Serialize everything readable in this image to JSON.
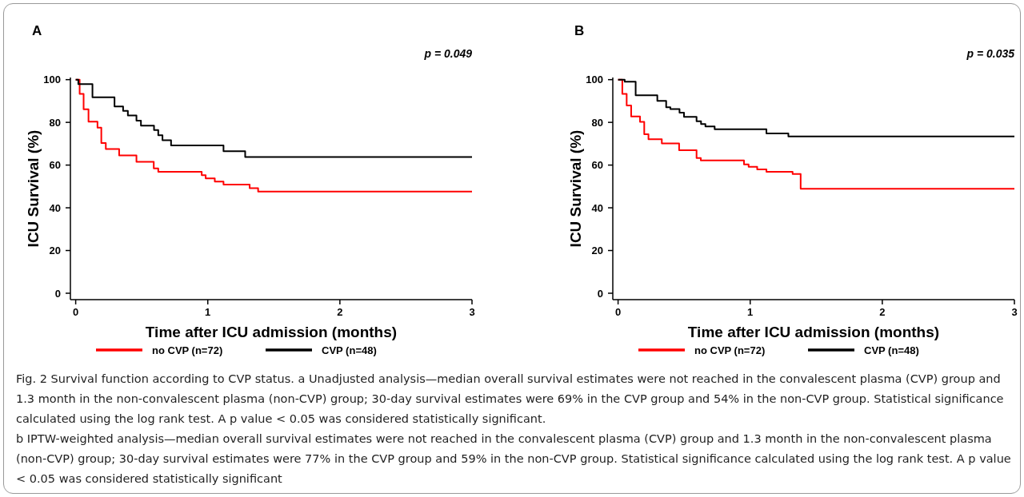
{
  "chart_data": [
    {
      "type": "step",
      "title": "A",
      "xlabel": "Time after ICU admission (months)",
      "ylabel": "ICU Survival (%)",
      "xlim": [
        -0.04,
        3
      ],
      "ylim": [
        -3,
        101
      ],
      "xticks": [
        0,
        1,
        2,
        3
      ],
      "yticks": [
        0,
        20,
        40,
        60,
        80,
        100
      ],
      "legend": "bottom",
      "annotations": [
        "p = 0.049"
      ],
      "series": [
        {
          "name": "no CVP (n=72)",
          "color": "#ff0000",
          "x": [
            0,
            0.03,
            0.06,
            0.097,
            0.165,
            0.194,
            0.228,
            0.329,
            0.46,
            0.591,
            0.625,
            0.954,
            0.984,
            1.053,
            1.119,
            1.317,
            1.381,
            3
          ],
          "values": [
            100,
            93.3,
            86.1,
            80.3,
            77.5,
            70.3,
            67.5,
            64.5,
            61.5,
            58.4,
            56.9,
            55.3,
            53.8,
            52.3,
            50.9,
            49.2,
            47.6,
            47.6
          ]
        },
        {
          "name": "CVP (n=48)",
          "color": "#000000",
          "x": [
            0,
            0.02,
            0.127,
            0.294,
            0.359,
            0.395,
            0.46,
            0.494,
            0.593,
            0.625,
            0.657,
            0.722,
            1.119,
            1.283,
            3
          ],
          "values": [
            100,
            97.9,
            91.7,
            87.4,
            85.4,
            83.2,
            80.8,
            78.5,
            76.4,
            74.0,
            71.6,
            69.2,
            66.5,
            63.8,
            63.8
          ]
        }
      ]
    },
    {
      "type": "step",
      "title": "B",
      "xlabel": "Time after ICU admission (months)",
      "ylabel": "ICU Survival (%)",
      "xlim": [
        -0.04,
        3
      ],
      "ylim": [
        -3,
        101
      ],
      "xticks": [
        0,
        1,
        2,
        3
      ],
      "yticks": [
        0,
        20,
        40,
        60,
        80,
        100
      ],
      "legend": "bottom",
      "annotations": [
        "p = 0.035",
        "Fig. 2 Survival function according to CVP status. a Unadjusted analysis—median overall survival estimates were not reached in the convalescent plasma (CVP) group and 1.3 month in the non-convalescent plasma (non-CVP) group; 30-day survival estimates were 69% in the CVP group and 54% in the non-CVP group. Statistical significance calculated using the log rank test. A p value < 0.05 was considered statistically significant.",
        "b IPTW-weighted analysis—median overall survival estimates were not reached in the convalescent plasma (CVP) group and 1.3 month in the non-convalescent plasma (non-CVP) group; 30-day survival estimates were 77% in the CVP group and 59% in the non-CVP group. Statistical significance calculated using the log rank test. A p value < 0.05 was considered statistically significant"
      ],
      "series": [
        {
          "name": "no CVP (n=72)",
          "color": "#ff0000",
          "x": [
            0,
            0.032,
            0.065,
            0.099,
            0.166,
            0.198,
            0.23,
            0.331,
            0.462,
            0.594,
            0.626,
            0.953,
            0.988,
            1.053,
            1.123,
            1.321,
            1.382,
            3
          ],
          "values": [
            100,
            93.3,
            87.9,
            82.8,
            80.2,
            74.4,
            72.1,
            70.1,
            67.0,
            63.3,
            62.2,
            60.3,
            59.2,
            58.0,
            56.9,
            55.8,
            48.9,
            48.9
          ]
        },
        {
          "name": "CVP (n=48)",
          "color": "#000000",
          "x": [
            0,
            0.05,
            0.133,
            0.297,
            0.364,
            0.396,
            0.465,
            0.499,
            0.594,
            0.628,
            0.661,
            0.731,
            1.123,
            1.289,
            3
          ],
          "values": [
            100,
            99.0,
            92.7,
            90.1,
            87.1,
            86.2,
            84.5,
            82.6,
            80.5,
            79.2,
            78.1,
            76.8,
            74.8,
            73.4,
            73.4
          ]
        }
      ]
    }
  ]
}
